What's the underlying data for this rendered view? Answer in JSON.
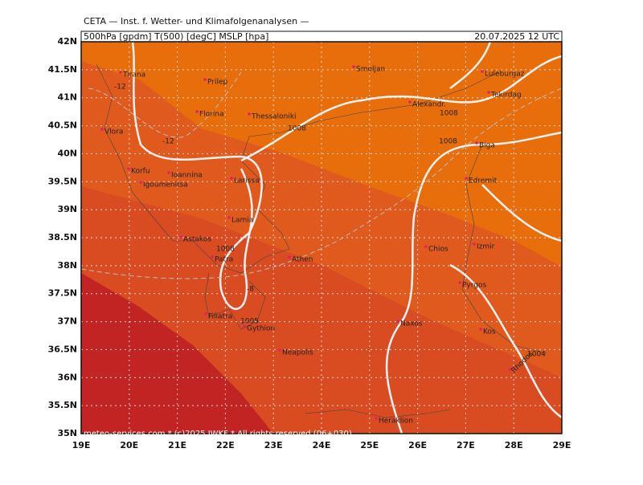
{
  "header": {
    "title": "CETA — Inst. f. Wetter- und Klimafolgenanalysen —",
    "parameters": "500hPa [gpdm] T(500) [degC] MSLP [hpa]",
    "date": "20.07.2025 12 UTC"
  },
  "lat_labels": [
    "42N",
    "41.5N",
    "41N",
    "40.5N",
    "40N",
    "39.5N",
    "39N",
    "38.5N",
    "38N",
    "37.5N",
    "37N",
    "36.5N",
    "36N",
    "35.5N",
    "35N"
  ],
  "lon_labels": [
    "19E",
    "20E",
    "21E",
    "22E",
    "23E",
    "24E",
    "25E",
    "26E",
    "27E",
    "28E",
    "29E"
  ],
  "places": [
    "Tirana",
    "Prilep",
    "Smoljan",
    "Luleburgaz",
    "Tekirdag",
    "Alexandr.",
    "Florina",
    "Thessaloniki",
    "Vlora",
    "Biga",
    "Korfu",
    "Ioannina",
    "Larissa",
    "Igoumenitsa",
    "Edremit",
    "Lamia",
    "Astakos",
    "Chios",
    "Izmir",
    "Patra",
    "Athen",
    "Pyrgos",
    "Filiatra",
    "Gythion",
    "Naxos",
    "Kos",
    "Neapolis",
    "Rhodos",
    "Heraklion"
  ],
  "contour_labels": [
    "-12",
    "1008",
    "1008",
    "1008",
    "-12",
    "1008",
    "-8",
    "1005",
    "1004"
  ],
  "footer": "meteo-services.com * (c)2025 IWKF * All rights reserved (06+030)"
}
